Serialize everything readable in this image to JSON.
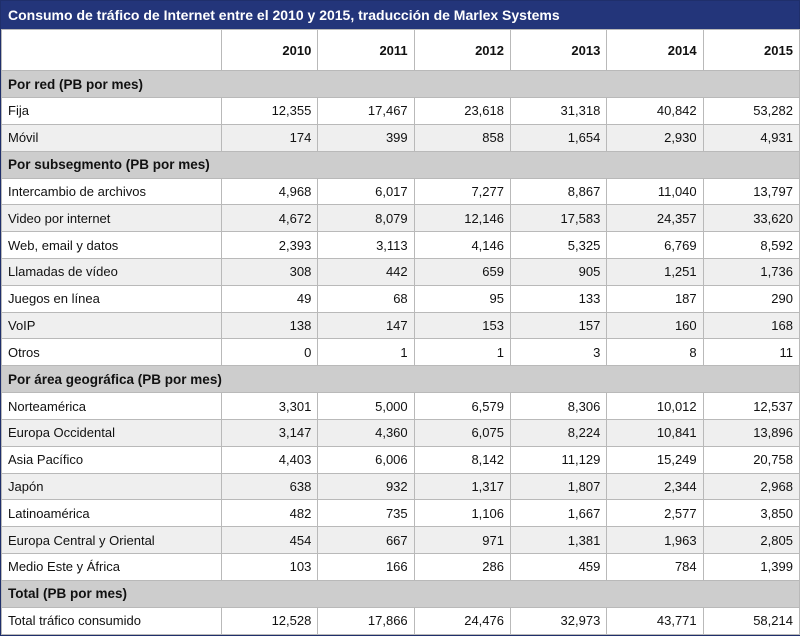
{
  "chart_data": {
    "type": "table",
    "title": "Consumo de tráfico de Internet entre el 2010 y 2015, traducción de Marlex Systems",
    "columns": [
      "2010",
      "2011",
      "2012",
      "2013",
      "2014",
      "2015"
    ],
    "sections": [
      {
        "header": "Por red (PB por mes)",
        "rows": [
          {
            "label": "Fija",
            "values": [
              "12,355",
              "17,467",
              "23,618",
              "31,318",
              "40,842",
              "53,282"
            ]
          },
          {
            "label": "Móvil",
            "values": [
              "174",
              "399",
              "858",
              "1,654",
              "2,930",
              "4,931"
            ]
          }
        ]
      },
      {
        "header": "Por subsegmento (PB por mes)",
        "rows": [
          {
            "label": "Intercambio de archivos",
            "values": [
              "4,968",
              "6,017",
              "7,277",
              "8,867",
              "11,040",
              "13,797"
            ]
          },
          {
            "label": "Video por internet",
            "values": [
              "4,672",
              "8,079",
              "12,146",
              "17,583",
              "24,357",
              "33,620"
            ]
          },
          {
            "label": "Web, email y datos",
            "values": [
              "2,393",
              "3,113",
              "4,146",
              "5,325",
              "6,769",
              "8,592"
            ]
          },
          {
            "label": "Llamadas de vídeo",
            "values": [
              "308",
              "442",
              "659",
              "905",
              "1,251",
              "1,736"
            ]
          },
          {
            "label": "Juegos en línea",
            "values": [
              "49",
              "68",
              "95",
              "133",
              "187",
              "290"
            ]
          },
          {
            "label": "VoIP",
            "values": [
              "138",
              "147",
              "153",
              "157",
              "160",
              "168"
            ]
          },
          {
            "label": "Otros",
            "values": [
              "0",
              "1",
              "1",
              "3",
              "8",
              "11"
            ]
          }
        ]
      },
      {
        "header": "Por área geográfica (PB por mes)",
        "rows": [
          {
            "label": "Norteamérica",
            "values": [
              "3,301",
              "5,000",
              "6,579",
              "8,306",
              "10,012",
              "12,537"
            ]
          },
          {
            "label": "Europa Occidental",
            "values": [
              "3,147",
              "4,360",
              "6,075",
              "8,224",
              "10,841",
              "13,896"
            ]
          },
          {
            "label": "Asia Pacífico",
            "values": [
              "4,403",
              "6,006",
              "8,142",
              "11,129",
              "15,249",
              "20,758"
            ]
          },
          {
            "label": "Japón",
            "values": [
              "638",
              "932",
              "1,317",
              "1,807",
              "2,344",
              "2,968"
            ]
          },
          {
            "label": "Latinoamérica",
            "values": [
              "482",
              "735",
              "1,106",
              "1,667",
              "2,577",
              "3,850"
            ]
          },
          {
            "label": "Europa Central y Oriental",
            "values": [
              "454",
              "667",
              "971",
              "1,381",
              "1,963",
              "2,805"
            ]
          },
          {
            "label": "Medio Este y África",
            "values": [
              "103",
              "166",
              "286",
              "459",
              "784",
              "1,399"
            ]
          }
        ]
      },
      {
        "header": "Total (PB por mes)",
        "rows": [
          {
            "label": "Total tráfico consumido",
            "values": [
              "12,528",
              "17,866",
              "24,476",
              "32,973",
              "43,771",
              "58,214"
            ]
          }
        ]
      }
    ],
    "colors": {
      "title_bg": "#23357a",
      "section_bg": "#cdcdcd",
      "alt_row_bg": "#efefef"
    }
  }
}
